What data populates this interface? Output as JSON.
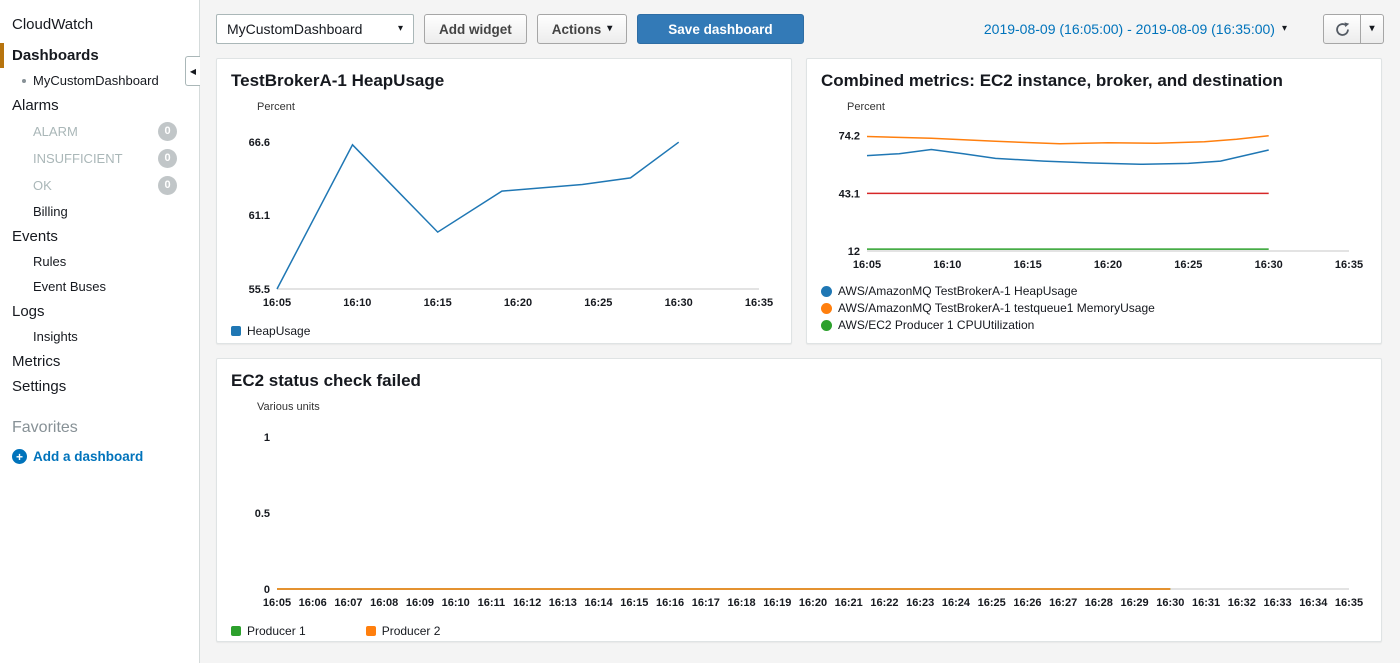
{
  "glyphs": {
    "caret_down": "▾",
    "collapse": "◀",
    "plus": "+"
  },
  "colors": {
    "primary_button": "#337ab7",
    "link_blue": "#0073bb",
    "selected_indicator": "#b7740e",
    "series_blue": "#1f77b4",
    "series_orange": "#ff7f0e",
    "series_green": "#2ca02c",
    "series_red": "#d62728"
  },
  "sidebar": {
    "app_title": "CloudWatch",
    "items": [
      {
        "label": "Dashboards"
      },
      {
        "label": "MyCustomDashboard"
      },
      {
        "label": "Alarms"
      },
      {
        "label": "ALARM",
        "badge": "0"
      },
      {
        "label": "INSUFFICIENT",
        "badge": "0"
      },
      {
        "label": "OK",
        "badge": "0"
      },
      {
        "label": "Billing"
      },
      {
        "label": "Events"
      },
      {
        "label": "Rules"
      },
      {
        "label": "Event Buses"
      },
      {
        "label": "Logs"
      },
      {
        "label": "Insights"
      },
      {
        "label": "Metrics"
      },
      {
        "label": "Settings"
      },
      {
        "label": "Favorites"
      },
      {
        "label": "Add a dashboard"
      }
    ]
  },
  "toolbar": {
    "dashboard_selector": "MyCustomDashboard",
    "add_widget_label": "Add widget",
    "actions_label": "Actions",
    "save_label": "Save dashboard",
    "time_range": "2019-08-09 (16:05:00) - 2019-08-09 (16:35:00)"
  },
  "chart_data": [
    {
      "type": "line",
      "title": "TestBrokerA-1 HeapUsage",
      "ylabel": "Percent",
      "ymin": 55.5,
      "ymax": 67.9,
      "yticks": [
        66.6,
        61.1,
        55.5
      ],
      "xmin": 0,
      "xmax": 30,
      "xtick_labels": [
        "16:05",
        "16:10",
        "16:15",
        "16:20",
        "16:25",
        "16:30",
        "16:35"
      ],
      "series": [
        {
          "name": "HeapUsage",
          "color": "#1f77b4",
          "points": [
            [
              0,
              55.5
            ],
            [
              4.7,
              66.4
            ],
            [
              10,
              59.8
            ],
            [
              14,
              62.9
            ],
            [
              19,
              63.4
            ],
            [
              22,
              63.9
            ],
            [
              25,
              66.6
            ]
          ]
        }
      ],
      "legend": [
        {
          "label": "HeapUsage",
          "color": "#1f77b4"
        }
      ]
    },
    {
      "type": "line",
      "title": "Combined metrics: EC2 instance, broker, and destination",
      "ylabel": "Percent",
      "ymin": 12,
      "ymax": 80,
      "yticks": [
        74.2,
        43.1,
        12
      ],
      "xmin": 0,
      "xmax": 30,
      "xtick_labels": [
        "16:05",
        "16:10",
        "16:15",
        "16:20",
        "16:25",
        "16:30",
        "16:35"
      ],
      "series": [
        {
          "name": "AWS/AmazonMQ TestBrokerA-1 HeapUsage",
          "color": "#1f77b4",
          "points": [
            [
              0,
              63.5
            ],
            [
              2,
              64.5
            ],
            [
              4,
              66.8
            ],
            [
              6,
              64.5
            ],
            [
              8,
              62
            ],
            [
              11,
              60.5
            ],
            [
              14,
              59.5
            ],
            [
              17,
              58.8
            ],
            [
              20,
              59.3
            ],
            [
              22,
              60.5
            ],
            [
              25,
              66.5
            ]
          ]
        },
        {
          "name": "AWS/AmazonMQ TestBrokerA-1 testqueue1 MemoryUsage",
          "color": "#ff7f0e",
          "points": [
            [
              0,
              73.8
            ],
            [
              4,
              72.8
            ],
            [
              8,
              71.2
            ],
            [
              12,
              69.9
            ],
            [
              15,
              70.4
            ],
            [
              18,
              70.1
            ],
            [
              21,
              71
            ],
            [
              23,
              72.3
            ],
            [
              25,
              74.2
            ]
          ]
        },
        {
          "name": "",
          "color": "#d62728",
          "points": [
            [
              0,
              43.1
            ],
            [
              25,
              43.1
            ]
          ]
        },
        {
          "name": "AWS/EC2 Producer 1 CPUUtilization",
          "color": "#2ca02c",
          "points": [
            [
              0,
              13
            ],
            [
              25,
              13
            ]
          ]
        }
      ],
      "legend": [
        {
          "label": "AWS/AmazonMQ TestBrokerA-1 HeapUsage",
          "color": "#1f77b4"
        },
        {
          "label": "AWS/AmazonMQ TestBrokerA-1 testqueue1 MemoryUsage",
          "color": "#ff7f0e"
        },
        {
          "label": "AWS/EC2 Producer 1 CPUUtilization",
          "color": "#2ca02c"
        }
      ]
    },
    {
      "type": "line",
      "title": "EC2 status check failed",
      "ylabel": "Various units",
      "ymin": 0,
      "ymax": 1.08,
      "yticks": [
        1,
        0.5,
        0
      ],
      "xmin": 0,
      "xmax": 30,
      "xtick_labels": [
        "16:05",
        "16:06",
        "16:07",
        "16:08",
        "16:09",
        "16:10",
        "16:11",
        "16:12",
        "16:13",
        "16:14",
        "16:15",
        "16:16",
        "16:17",
        "16:18",
        "16:19",
        "16:20",
        "16:21",
        "16:22",
        "16:23",
        "16:24",
        "16:25",
        "16:26",
        "16:27",
        "16:28",
        "16:29",
        "16:30",
        "16:31",
        "16:32",
        "16:33",
        "16:34",
        "16:35"
      ],
      "series": [
        {
          "name": "Producer 1",
          "color": "#2ca02c",
          "points": [
            [
              0,
              0
            ],
            [
              25,
              0
            ]
          ]
        },
        {
          "name": "Producer 2",
          "color": "#ff7f0e",
          "points": [
            [
              0,
              0
            ],
            [
              25,
              0
            ]
          ]
        }
      ],
      "legend": [
        {
          "label": "Producer 1",
          "color": "#2ca02c"
        },
        {
          "label": "Producer 2",
          "color": "#ff7f0e"
        }
      ]
    }
  ]
}
